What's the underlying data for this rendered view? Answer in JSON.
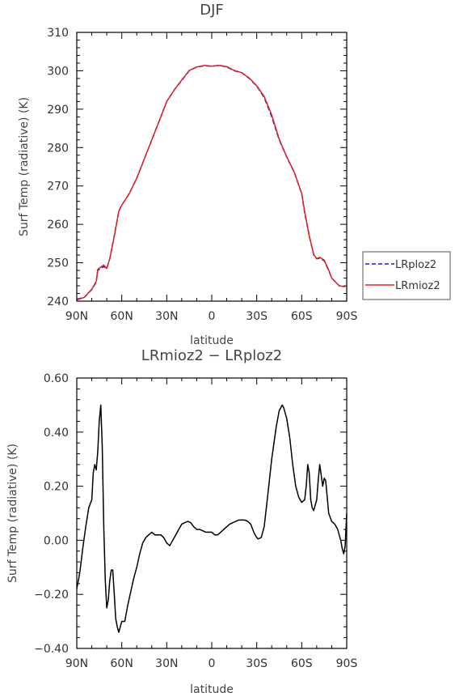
{
  "chart_data": [
    {
      "type": "line",
      "title": "DJF",
      "xlabel": "latitude",
      "ylabel": "Surf Temp (radiative) (K)",
      "xlim": [
        90,
        -90
      ],
      "ylim": [
        240,
        310
      ],
      "x_ticks": [
        {
          "v": 90,
          "label": "90N"
        },
        {
          "v": 60,
          "label": "60N"
        },
        {
          "v": 30,
          "label": "30N"
        },
        {
          "v": 0,
          "label": "0"
        },
        {
          "v": -30,
          "label": "30S"
        },
        {
          "v": -60,
          "label": "60S"
        },
        {
          "v": -90,
          "label": "90S"
        }
      ],
      "y_ticks": [
        {
          "v": 240,
          "label": "240"
        },
        {
          "v": 250,
          "label": "250"
        },
        {
          "v": 260,
          "label": "260"
        },
        {
          "v": 270,
          "label": "270"
        },
        {
          "v": 280,
          "label": "280"
        },
        {
          "v": 290,
          "label": "290"
        },
        {
          "v": 300,
          "label": "300"
        },
        {
          "v": 310,
          "label": "310"
        }
      ],
      "legend": "right",
      "series": [
        {
          "name": "LRploz2",
          "color": "#1f1fcf",
          "dash": true,
          "x": [
            90,
            85,
            80,
            77,
            76,
            72,
            70,
            68,
            65,
            62,
            60,
            55,
            50,
            45,
            40,
            35,
            30,
            25,
            20,
            15,
            10,
            5,
            0,
            -5,
            -10,
            -15,
            -20,
            -25,
            -30,
            -35,
            -40,
            -45,
            -50,
            -55,
            -60,
            -62,
            -65,
            -68,
            -70,
            -72,
            -75,
            -78,
            -80,
            -85,
            -88,
            -90
          ],
          "y": [
            240.5,
            241,
            243,
            245,
            248,
            249,
            248.5,
            251,
            257,
            263.5,
            265,
            268,
            272,
            277,
            282,
            287,
            292,
            295,
            297.5,
            300,
            301,
            301.3,
            301.2,
            301.4,
            301,
            300,
            299.5,
            298,
            296,
            293,
            288,
            282,
            277.5,
            273.5,
            268,
            263,
            257,
            252,
            251,
            251.2,
            250.5,
            248,
            246,
            244,
            243.8,
            244
          ]
        },
        {
          "name": "LRmioz2",
          "color": "#e02020",
          "dash": false,
          "x": [
            90,
            85,
            80,
            77,
            76,
            72,
            70,
            68,
            65,
            62,
            60,
            55,
            50,
            45,
            40,
            35,
            30,
            25,
            20,
            15,
            10,
            5,
            0,
            -5,
            -10,
            -15,
            -20,
            -25,
            -30,
            -35,
            -40,
            -45,
            -50,
            -55,
            -60,
            -62,
            -65,
            -68,
            -70,
            -72,
            -75,
            -78,
            -80,
            -85,
            -88,
            -90
          ],
          "y": [
            240.3,
            241,
            243.1,
            245.2,
            248.3,
            249.4,
            248.5,
            251,
            256.9,
            263.4,
            265,
            268,
            272,
            277,
            282,
            287,
            292,
            295,
            297.6,
            300.1,
            301,
            301.4,
            301.2,
            301.4,
            301.1,
            300.1,
            299.5,
            298.1,
            296.1,
            293.3,
            288.5,
            282.2,
            277.6,
            273.6,
            268.1,
            263.3,
            257.1,
            252.1,
            251.1,
            251.4,
            250.7,
            248.1,
            246,
            244,
            243.8,
            244
          ]
        }
      ]
    },
    {
      "type": "line",
      "title": "LRmioz2 − LRploz2",
      "xlabel": "latitude",
      "ylabel": "Surf Temp (radiative) (K)",
      "xlim": [
        90,
        -90
      ],
      "ylim": [
        -0.4,
        0.6
      ],
      "x_ticks": [
        {
          "v": 90,
          "label": "90N"
        },
        {
          "v": 60,
          "label": "60N"
        },
        {
          "v": 30,
          "label": "30N"
        },
        {
          "v": 0,
          "label": "0"
        },
        {
          "v": -30,
          "label": "30S"
        },
        {
          "v": -60,
          "label": "60S"
        },
        {
          "v": -90,
          "label": "90S"
        }
      ],
      "y_ticks": [
        {
          "v": -0.4,
          "label": "−0.40"
        },
        {
          "v": -0.2,
          "label": "−0.20"
        },
        {
          "v": 0,
          "label": "0.00"
        },
        {
          "v": 0.2,
          "label": "0.20"
        },
        {
          "v": 0.4,
          "label": "0.40"
        },
        {
          "v": 0.6,
          "label": "0.60"
        }
      ],
      "series": [
        {
          "color": "#000000",
          "x": [
            90,
            88,
            86,
            84,
            82,
            80,
            79,
            78,
            77,
            76,
            75,
            74,
            73,
            72,
            71,
            70,
            69,
            68,
            67,
            66,
            65,
            64,
            63,
            62,
            60,
            58,
            56,
            54,
            52,
            50,
            48,
            46,
            44,
            42,
            40,
            38,
            36,
            34,
            32,
            30,
            28,
            26,
            24,
            22,
            20,
            18,
            16,
            14,
            12,
            10,
            8,
            6,
            4,
            2,
            0,
            -2,
            -4,
            -6,
            -8,
            -10,
            -12,
            -14,
            -16,
            -18,
            -20,
            -22,
            -24,
            -26,
            -28,
            -30,
            -31,
            -33,
            -35,
            -37,
            -40,
            -43,
            -45,
            -46,
            -47,
            -48,
            -50,
            -52,
            -54,
            -56,
            -58,
            -60,
            -62,
            -63,
            -64,
            -65,
            -66,
            -67,
            -68,
            -70,
            -71,
            -72,
            -73,
            -74,
            -75,
            -76,
            -77,
            -78,
            -80,
            -82,
            -84,
            -85,
            -86,
            -87,
            -88,
            -89,
            -90
          ],
          "y": [
            -0.18,
            -0.12,
            -0.03,
            0.05,
            0.12,
            0.15,
            0.25,
            0.28,
            0.26,
            0.33,
            0.44,
            0.5,
            0.35,
            0.05,
            -0.15,
            -0.25,
            -0.22,
            -0.15,
            -0.11,
            -0.11,
            -0.2,
            -0.29,
            -0.32,
            -0.34,
            -0.3,
            -0.3,
            -0.24,
            -0.19,
            -0.14,
            -0.1,
            -0.05,
            -0.01,
            0.01,
            0.02,
            0.03,
            0.02,
            0.02,
            0.02,
            0.01,
            -0.01,
            -0.02,
            0.0,
            0.02,
            0.04,
            0.06,
            0.065,
            0.07,
            0.065,
            0.05,
            0.04,
            0.04,
            0.035,
            0.03,
            0.03,
            0.03,
            0.02,
            0.02,
            0.03,
            0.04,
            0.05,
            0.06,
            0.065,
            0.07,
            0.075,
            0.075,
            0.075,
            0.07,
            0.06,
            0.03,
            0.01,
            0.005,
            0.01,
            0.05,
            0.15,
            0.3,
            0.42,
            0.48,
            0.49,
            0.5,
            0.49,
            0.45,
            0.38,
            0.28,
            0.2,
            0.16,
            0.14,
            0.15,
            0.2,
            0.28,
            0.25,
            0.15,
            0.12,
            0.11,
            0.15,
            0.22,
            0.28,
            0.24,
            0.2,
            0.23,
            0.22,
            0.16,
            0.1,
            0.07,
            0.06,
            0.04,
            0.02,
            0.0,
            -0.03,
            -0.05,
            -0.02,
            0.1
          ]
        }
      ]
    }
  ]
}
